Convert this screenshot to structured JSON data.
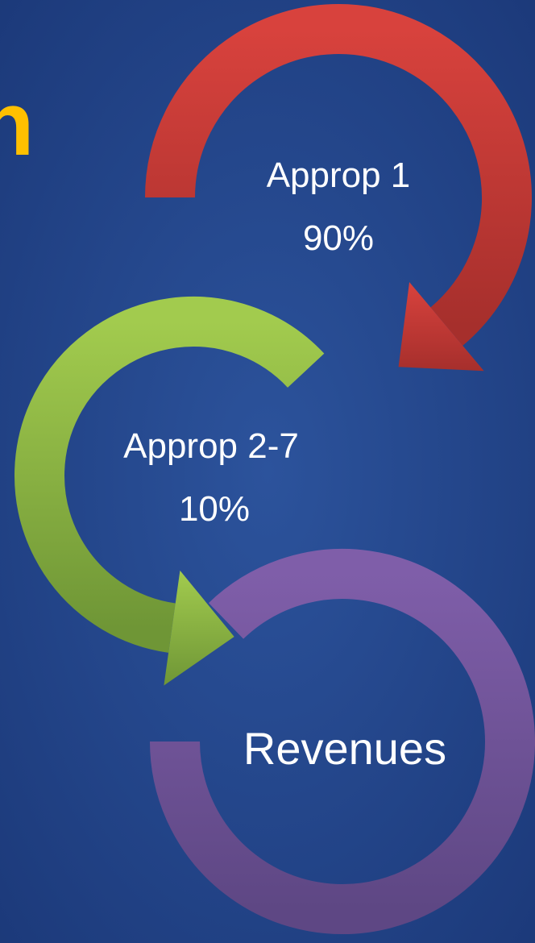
{
  "title": "n",
  "nodes": [
    {
      "label": "Approp 1",
      "share": "90%"
    },
    {
      "label": "Approp 2-7",
      "share": "10%"
    },
    {
      "label": "Revenues"
    }
  ]
}
